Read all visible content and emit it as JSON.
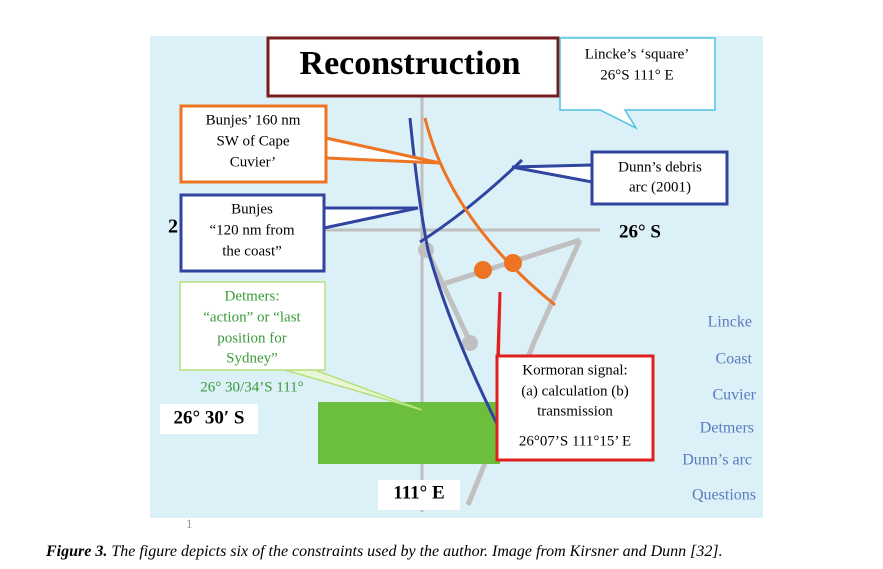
{
  "figure": {
    "title": "Reconstruction",
    "lincke_callout": [
      "Lincke’s ‘square’",
      "26°S 111° E"
    ],
    "bunjes_160_callout": [
      "Bunjes’ 160 nm",
      "SW of Cape",
      "Cuvier’"
    ],
    "dunn_callout": [
      "Dunn’s debris",
      "arc (2001)"
    ],
    "bunjes_120_callout": [
      "Bunjes",
      "“120 nm from",
      "the  coast”"
    ],
    "hidden_label": "2",
    "lat_26s": "26° S",
    "detmers_callout": [
      "Detmers:",
      "“action” or “last",
      "position for",
      "Sydney”"
    ],
    "detmers_position": "26° 30/34’S 111°",
    "lat_2630s": "26° 30′ S",
    "kormoran_callout": [
      "Kormoran signal:",
      "(a) calculation (b)",
      "transmission",
      "26°07’S 111°15’ E"
    ],
    "lon_111e": "111° E",
    "side_labels": [
      "Lincke",
      "Coast",
      "Cuvier",
      "Detmers",
      "Dunn’s arc",
      "Questions"
    ],
    "page_number": "1"
  },
  "caption": {
    "label": "Figure 3.",
    "text": " The figure depicts six of the constraints used by the author. Image from Kirsner and Dunn [32]."
  }
}
